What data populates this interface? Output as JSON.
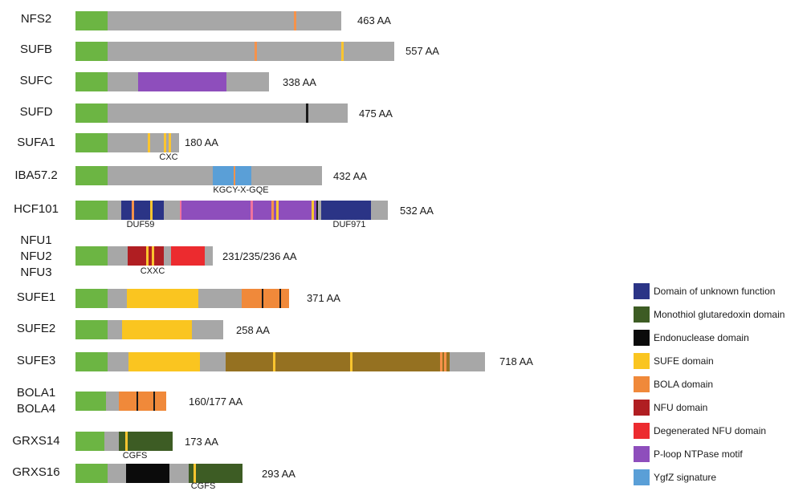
{
  "colors": {
    "signal": "#6cb543",
    "backbone": "#a7a7a7",
    "duf": "#2b3486",
    "monothiol": "#3d5c24",
    "endonuclease": "#0b0b0b",
    "sufe": "#fac520",
    "bola": "#f0893a",
    "nfu": "#b01e22",
    "nfu_degenerated": "#ec2b2f",
    "ploop": "#8e4ebc",
    "ygfz": "#5a9fd7",
    "sufe3_tail": "#957121",
    "motif_orange": "#f6924a",
    "motif_yellow": "#fbc52f",
    "motif_pink": "#f0739e",
    "dark_line": "#1a1a1a"
  },
  "proteins": [
    {
      "name": "NFS2",
      "length": "463 AA"
    },
    {
      "name": "SUFB",
      "length": "557 AA"
    },
    {
      "name": "SUFC",
      "length": "338 AA"
    },
    {
      "name": "SUFD",
      "length": "475 AA"
    },
    {
      "name": "SUFA1",
      "length": "180 AA",
      "motif": "CXC"
    },
    {
      "name": "IBA57.2",
      "length": "432 AA",
      "motif": "KGCY-X-GQE"
    },
    {
      "name": "HCF101",
      "length": "532 AA",
      "motif": "DUF59",
      "motif2": "DUF971"
    },
    {
      "name": "NFU1\nNFU2\nNFU3",
      "length": "231/235/236 AA",
      "motif": "CXXC"
    },
    {
      "name": "SUFE1",
      "length": "371 AA"
    },
    {
      "name": "SUFE2",
      "length": "258 AA"
    },
    {
      "name": "SUFE3",
      "length": "718 AA"
    },
    {
      "name": "BOLA1\nBOLA4",
      "length": "160/177 AA"
    },
    {
      "name": "GRXS14",
      "length": "173 AA",
      "motif": "CGFS"
    },
    {
      "name": "GRXS16",
      "length": "293 AA",
      "motif": "CGFS"
    }
  ],
  "legend": [
    {
      "label": "Domain of unknown function",
      "color": "#2b3486"
    },
    {
      "label": "Monothiol glutaredoxin domain",
      "color": "#3d5c24"
    },
    {
      "label": "Endonuclease domain",
      "color": "#0b0b0b"
    },
    {
      "label": "SUFE domain",
      "color": "#fac520"
    },
    {
      "label": "BOLA domain",
      "color": "#f0893a"
    },
    {
      "label": "NFU domain",
      "color": "#b01e22"
    },
    {
      "label": "Degenerated NFU domain",
      "color": "#ec2b2f"
    },
    {
      "label": "P-loop NTPase motif",
      "color": "#8e4ebc"
    },
    {
      "label": "YgfZ signature",
      "color": "#5a9fd7"
    }
  ]
}
